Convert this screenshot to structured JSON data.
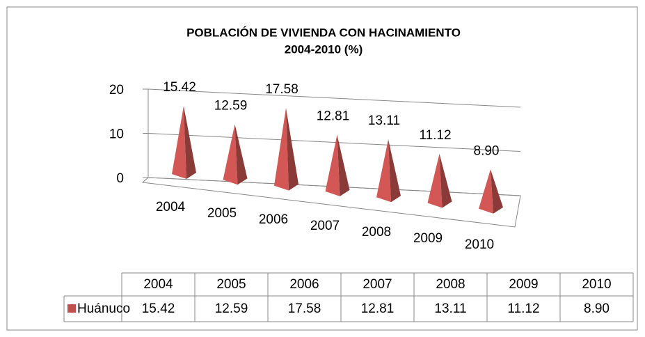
{
  "chart_data": {
    "type": "pyramid3d",
    "title": [
      "POBLACIÓN DE VIVIENDA CON HACINAMIENTO",
      "2004-2010 (%)"
    ],
    "categories": [
      "2004",
      "2005",
      "2006",
      "2007",
      "2008",
      "2009",
      "2010"
    ],
    "series": [
      {
        "name": "Huánuco",
        "color": "#c0504d",
        "values": [
          15.42,
          12.59,
          17.58,
          12.81,
          13.11,
          11.12,
          8.9
        ],
        "value_labels": [
          "15.42",
          "12.59",
          "17.58",
          "12.81",
          "13.11",
          "11.12",
          "8.90"
        ]
      }
    ],
    "ylim": [
      0,
      20
    ],
    "yticks": [
      0,
      10,
      20
    ],
    "grid": true,
    "data_table": true
  }
}
